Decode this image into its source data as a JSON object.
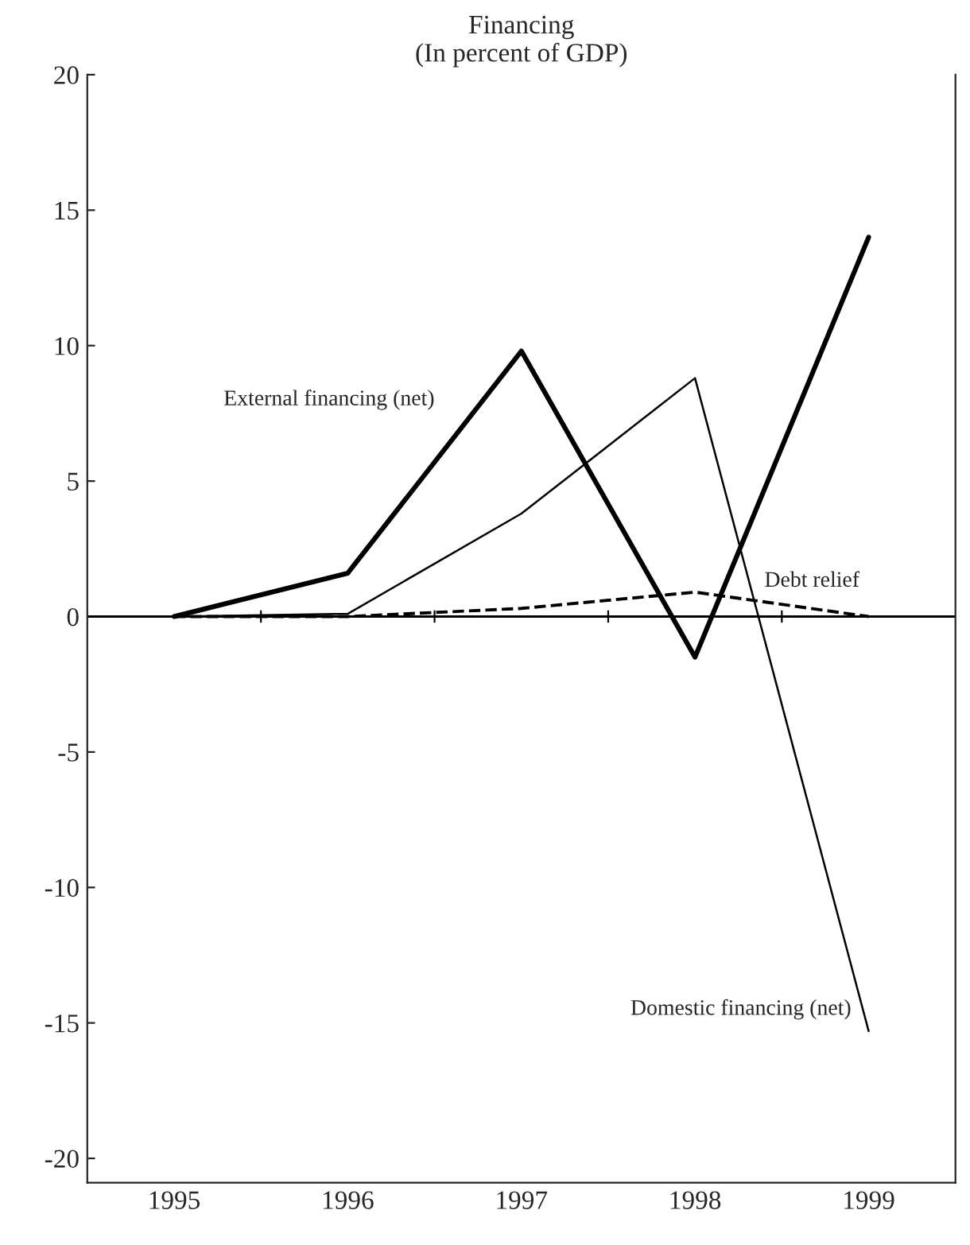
{
  "chart_data": {
    "type": "line",
    "title": "Financing\n(In percent of GDP)",
    "categories": [
      "1995",
      "1996",
      "1997",
      "1998",
      "1999"
    ],
    "series": [
      {
        "name": "External financing (net)",
        "color": "#000000",
        "values": [
          0,
          1.6,
          9.8,
          -1.5,
          14
        ]
      },
      {
        "name": "Domestic financing (net)",
        "color": "#000000",
        "values": [
          0,
          0.1,
          3.8,
          8.8,
          -15.3
        ]
      },
      {
        "name": "Debt relief",
        "color": "#000000",
        "values": [
          0,
          0,
          0.3,
          0.9,
          0
        ],
        "line_style": "dashed"
      }
    ],
    "ylim": [
      -20.9,
      20
    ],
    "yticks": [
      -20,
      -15,
      -10,
      -5,
      0,
      5,
      10,
      15,
      20
    ],
    "ref_lines": [
      {
        "axis": "y",
        "value": 0,
        "color": "#000000"
      }
    ],
    "grid": false,
    "legend": false,
    "marker": "none"
  }
}
